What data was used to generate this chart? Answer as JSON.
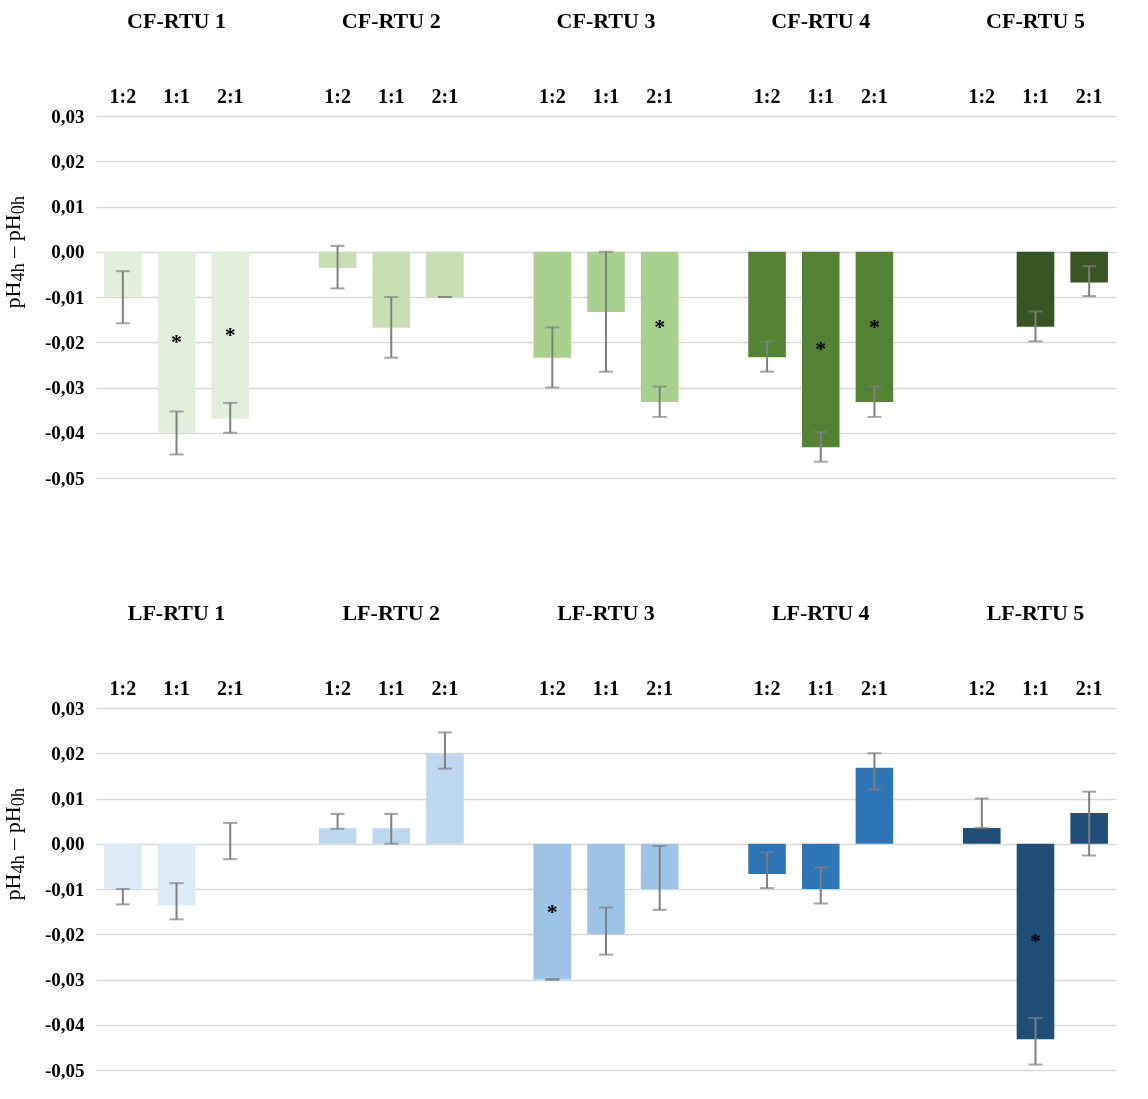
{
  "chart_data": [
    {
      "type": "bar",
      "ylabel": "pH$_{4h}$ – pH$_{0h}$",
      "annotations": [
        "CF-RTU 1",
        "CF-RTU 2",
        "CF-RTU 3",
        "CF-RTU 4",
        "CF-RTU 5"
      ],
      "categories": [
        "1:2",
        "1:1",
        "2:1",
        null,
        "1:2",
        "1:1",
        "2:1",
        null,
        "1:2",
        "1:1",
        "2:1",
        null,
        "1:2",
        "1:1",
        "2:1",
        null,
        "1:2",
        "1:1",
        "2:1"
      ],
      "values": [
        -0.01,
        -0.04,
        -0.0369,
        null,
        -0.0036,
        -0.0168,
        -0.01,
        null,
        -0.0234,
        -0.0133,
        -0.0332,
        null,
        -0.0233,
        -0.0432,
        -0.0332,
        null,
        0,
        -0.0166,
        -0.0068
      ],
      "colors": [
        "#e2efda",
        "#e2efda",
        "#e2efda",
        null,
        "#c6e0b4",
        "#c6e0b4",
        "#c6e0b4",
        null,
        "#a9d18e",
        "#a9d18e",
        "#a9d18e",
        null,
        "#548235",
        "#548235",
        "#548235",
        null,
        "#375623",
        "#375623",
        "#375623"
      ],
      "errors": [
        [
          -0.0158,
          -0.0043
        ],
        [
          -0.0448,
          -0.0353
        ],
        [
          -0.04,
          -0.0334
        ],
        null,
        [
          -0.0081,
          0.0013
        ],
        [
          -0.0234,
          -0.01
        ],
        [
          -0.01,
          -0.01
        ],
        null,
        [
          -0.03,
          -0.0167
        ],
        [
          -0.0265,
          0
        ],
        [
          -0.0365,
          -0.0298
        ],
        null,
        [
          -0.0265,
          -0.0198
        ],
        [
          -0.0464,
          -0.0398
        ],
        [
          -0.0365,
          -0.0298
        ],
        null,
        null,
        [
          -0.0198,
          -0.0132
        ],
        [
          -0.0098,
          -0.0032
        ]
      ],
      "value_labels": [
        null,
        "*",
        "*",
        null,
        null,
        null,
        null,
        null,
        null,
        null,
        "*",
        null,
        null,
        "*",
        "*",
        null,
        null,
        null,
        null
      ],
      "ylim": [
        -0.05,
        0.03
      ],
      "yticks": [
        {
          "value": 0.03,
          "label": "0,03"
        },
        {
          "value": 0.02,
          "label": "0,02"
        },
        {
          "value": 0.01,
          "label": "0,01"
        },
        {
          "value": 0,
          "label": "0,00"
        },
        {
          "value": -0.01,
          "label": "-0,01"
        },
        {
          "value": -0.02,
          "label": "-0,02"
        },
        {
          "value": -0.03,
          "label": "-0,03"
        },
        {
          "value": -0.04,
          "label": "-0,04"
        },
        {
          "value": -0.05,
          "label": "-0,05"
        }
      ],
      "grid": "y"
    },
    {
      "type": "bar",
      "ylabel": "pH$_{4h}$ – pH$_{0h}$",
      "annotations": [
        "LF-RTU 1",
        "LF-RTU 2",
        "LF-RTU 3",
        "LF-RTU 4",
        "LF-RTU 5"
      ],
      "categories": [
        "1:2",
        "1:1",
        "2:1",
        null,
        "1:2",
        "1:1",
        "2:1",
        null,
        "1:2",
        "1:1",
        "2:1",
        null,
        "1:2",
        "1:1",
        "2:1",
        null,
        "1:2",
        "1:1",
        "2:1"
      ],
      "values": [
        -0.01,
        -0.0136,
        0,
        null,
        0.0034,
        0.0034,
        0.02,
        null,
        -0.03,
        -0.02,
        -0.01,
        null,
        -0.0067,
        -0.01,
        0.0168,
        null,
        0.0035,
        -0.0432,
        0.0068
      ],
      "colors": [
        "#ddebf7",
        "#ddebf7",
        "#ddebf7",
        null,
        "#bdd7ee",
        "#bdd7ee",
        "#bdd7ee",
        null,
        "#9dc3e6",
        "#9dc3e6",
        "#9dc3e6",
        null,
        "#2e75b6",
        "#2e75b6",
        "#2e75b6",
        null,
        "#1f4e79",
        "#1f4e79",
        "#1f4e79"
      ],
      "errors": [
        [
          -0.0134,
          -0.01
        ],
        [
          -0.0167,
          -0.0087
        ],
        [
          -0.0034,
          0.0046
        ],
        null,
        [
          0.0033,
          0.0066
        ],
        [
          0,
          0.0066
        ],
        [
          0.0166,
          0.0246
        ],
        null,
        [
          -0.03,
          -0.03
        ],
        [
          -0.0245,
          -0.0141
        ],
        [
          -0.0146,
          -0.0005
        ],
        null,
        [
          -0.0098,
          -0.0019
        ],
        [
          -0.0132,
          -0.0052
        ],
        [
          0.012,
          0.02
        ],
        null,
        [
          0.0035,
          0.01
        ],
        [
          -0.0488,
          -0.0385
        ],
        [
          -0.0026,
          0.0115
        ]
      ],
      "value_labels": [
        null,
        null,
        null,
        null,
        null,
        null,
        null,
        null,
        "*",
        null,
        null,
        null,
        null,
        null,
        null,
        null,
        null,
        "*",
        null
      ],
      "ylim": [
        -0.05,
        0.03
      ],
      "yticks": [
        {
          "value": 0.03,
          "label": "0,03"
        },
        {
          "value": 0.02,
          "label": "0,02"
        },
        {
          "value": 0.01,
          "label": "0,01"
        },
        {
          "value": 0,
          "label": "0,00"
        },
        {
          "value": -0.01,
          "label": "-0,01"
        },
        {
          "value": -0.02,
          "label": "-0,02"
        },
        {
          "value": -0.03,
          "label": "-0,03"
        },
        {
          "value": -0.04,
          "label": "-0,04"
        },
        {
          "value": -0.05,
          "label": "-0,05"
        }
      ],
      "grid": "y"
    }
  ]
}
